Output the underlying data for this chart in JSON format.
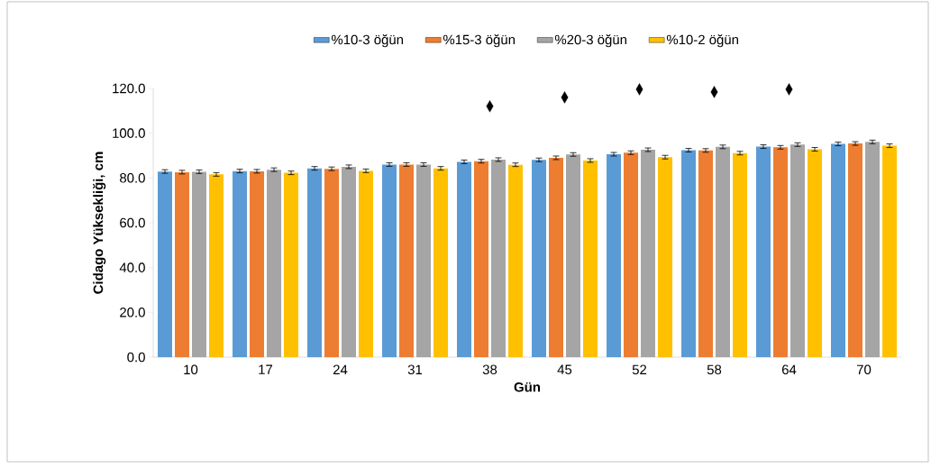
{
  "chart_data": {
    "type": "bar",
    "xlabel": "Gün",
    "ylabel": "Cidago Yüksekliği, cm",
    "categories": [
      "10",
      "17",
      "24",
      "31",
      "38",
      "45",
      "52",
      "58",
      "64",
      "70"
    ],
    "series": [
      {
        "name": "%10-3 öğün",
        "color": "#5b9bd5",
        "values": [
          82.9,
          83.1,
          84.3,
          86.0,
          87.2,
          88.1,
          90.6,
          92.4,
          94.0,
          95.2
        ],
        "errors": [
          0.8,
          0.8,
          0.8,
          0.8,
          0.8,
          0.8,
          0.8,
          0.8,
          0.8,
          0.8
        ]
      },
      {
        "name": "%15-3 öğün",
        "color": "#ed7d31",
        "values": [
          82.6,
          83.0,
          84.1,
          86.0,
          87.5,
          89.0,
          91.3,
          92.3,
          93.7,
          95.4
        ],
        "errors": [
          0.8,
          0.8,
          0.8,
          0.8,
          0.8,
          0.8,
          0.8,
          0.8,
          0.8,
          0.8
        ]
      },
      {
        "name": "%20-3 öğün",
        "color": "#a5a5a5",
        "values": [
          82.8,
          83.7,
          85.0,
          86.0,
          88.2,
          90.5,
          92.6,
          93.9,
          94.9,
          96.1
        ],
        "errors": [
          0.8,
          0.8,
          0.8,
          0.8,
          0.8,
          0.8,
          0.8,
          0.8,
          0.8,
          0.8
        ]
      },
      {
        "name": "%10-2 öğün",
        "color": "#ffc000",
        "values": [
          81.6,
          82.3,
          83.2,
          84.3,
          85.9,
          87.8,
          89.3,
          91.1,
          92.8,
          94.4
        ],
        "errors": [
          0.8,
          0.8,
          0.8,
          0.8,
          0.8,
          0.8,
          0.8,
          0.8,
          0.8,
          0.8
        ]
      },
      {
        "type": "scatter",
        "marker": "diamond",
        "color": "#000000",
        "x": [
          "38",
          "45",
          "52",
          "58",
          "64"
        ],
        "values": [
          112.0,
          116.0,
          119.6,
          118.4,
          119.6
        ]
      }
    ],
    "ylim": [
      0,
      120
    ],
    "yticks": [
      {
        "value": 0,
        "label": "0.0"
      },
      {
        "value": 20,
        "label": "20.0"
      },
      {
        "value": 40,
        "label": "40.0"
      },
      {
        "value": 60,
        "label": "60.0"
      },
      {
        "value": 80,
        "label": "80.0"
      },
      {
        "value": 100,
        "label": "100.0"
      },
      {
        "value": 120,
        "label": "120.0"
      }
    ],
    "grid": false,
    "legend": "top"
  }
}
